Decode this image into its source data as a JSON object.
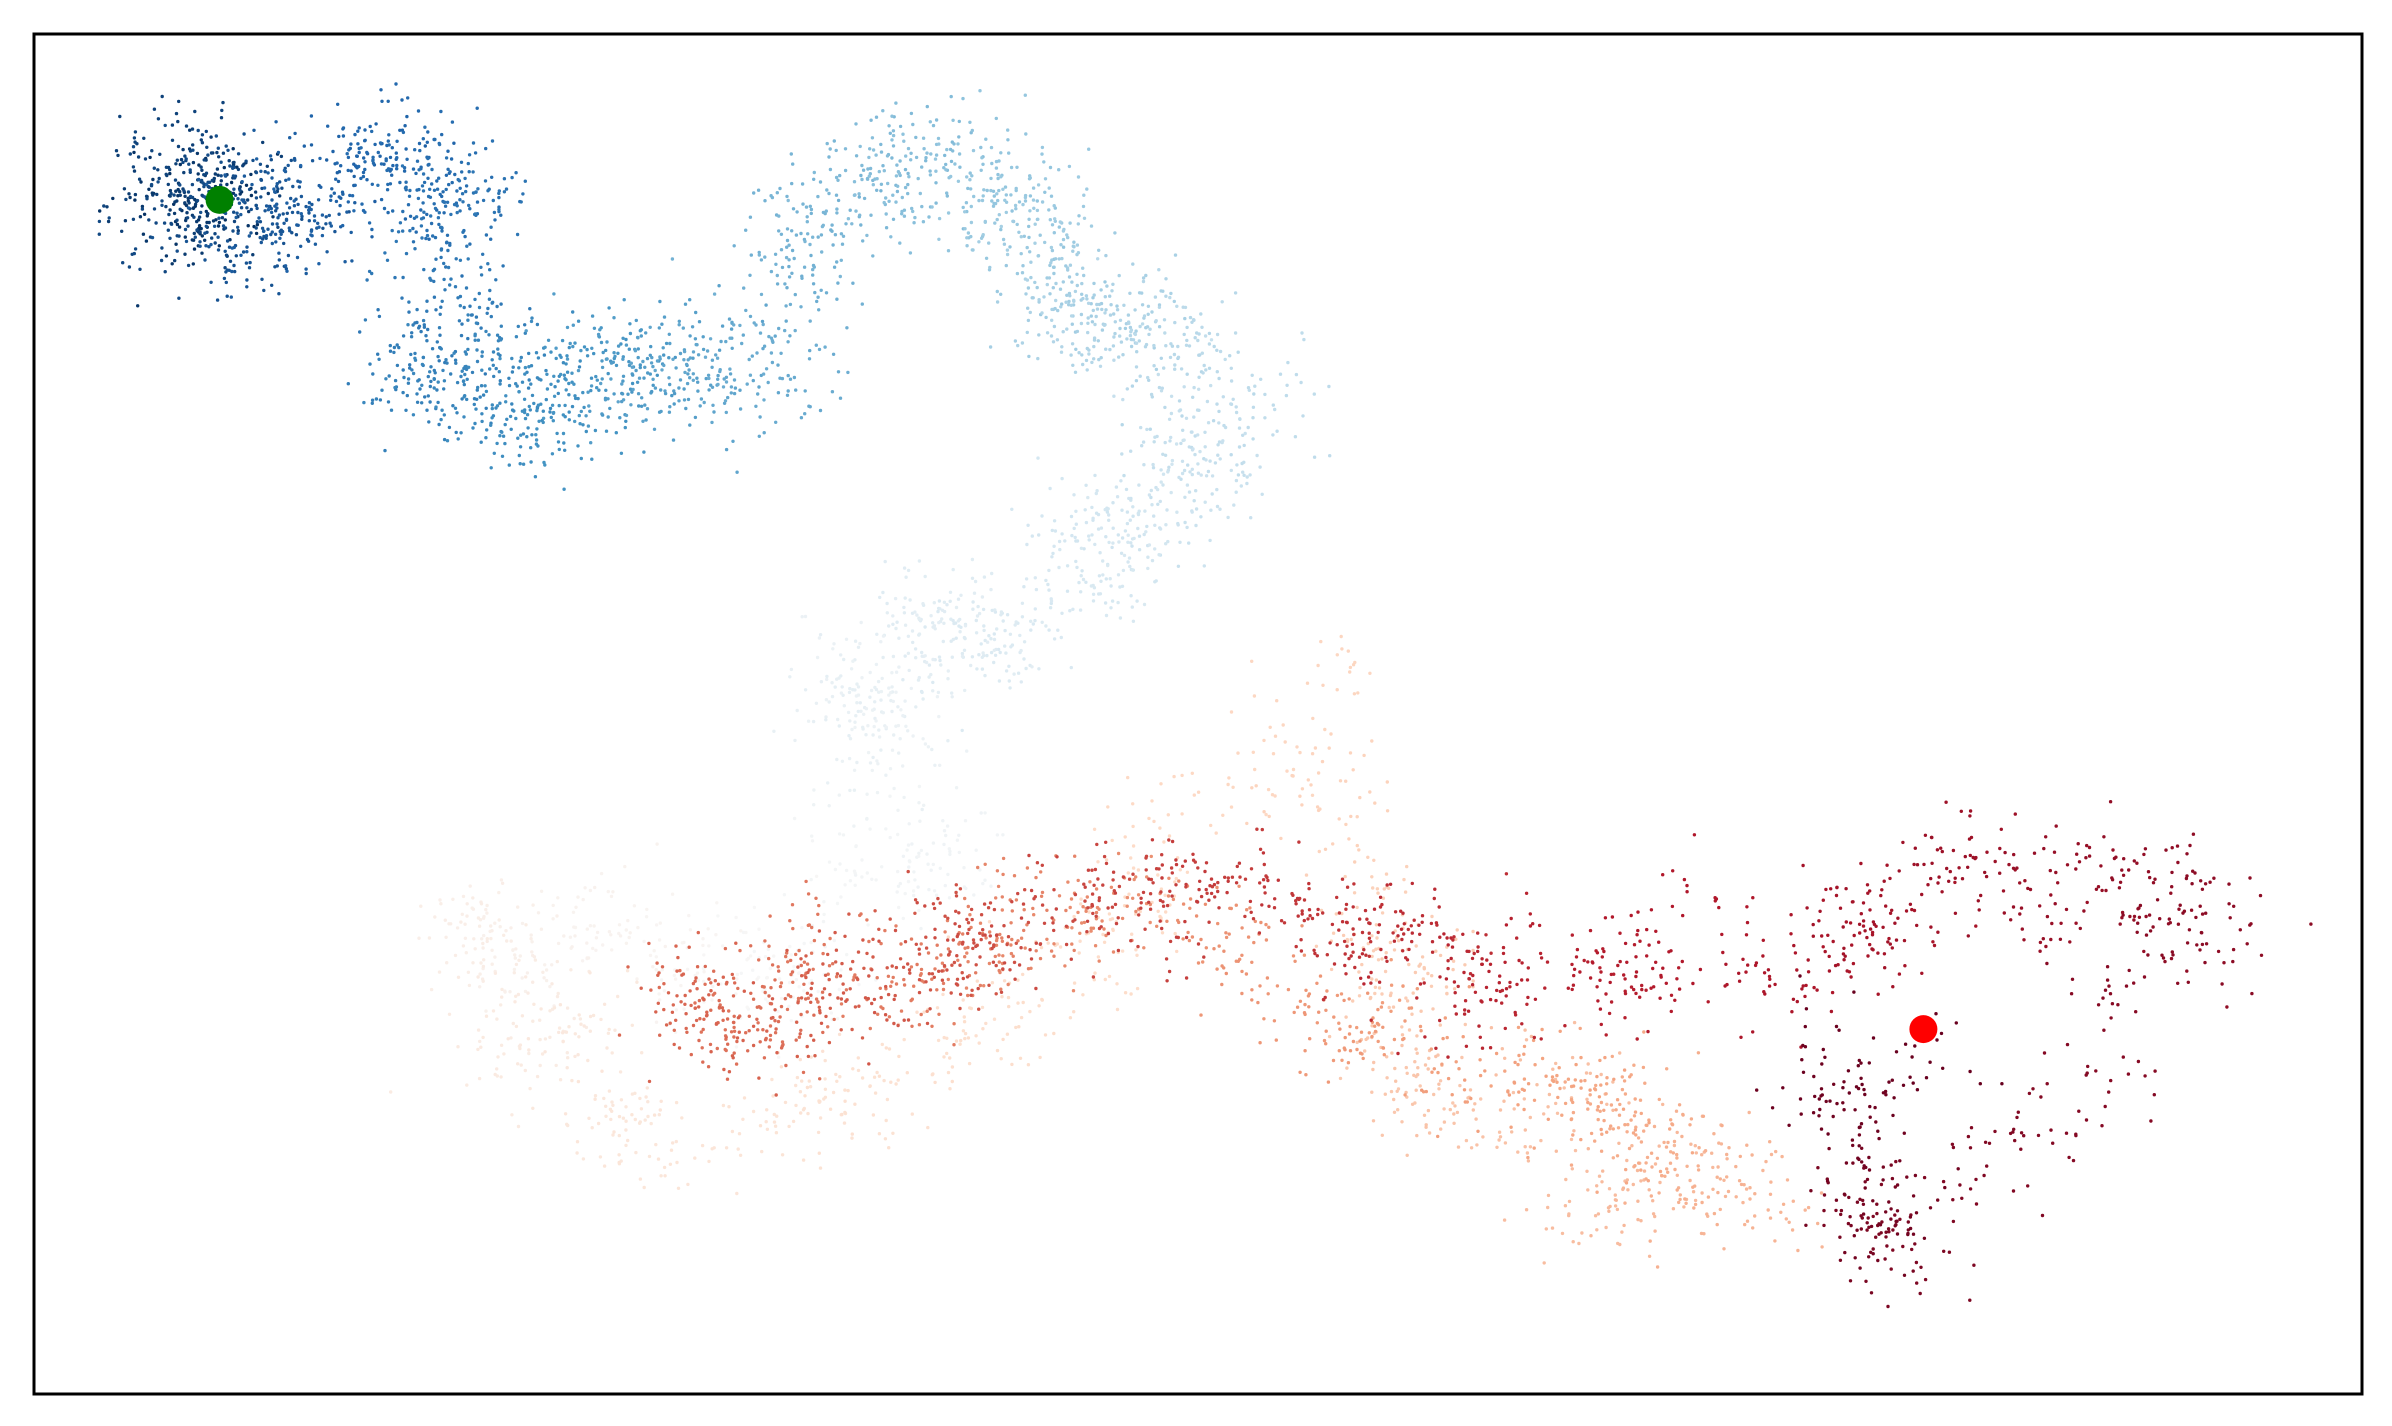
{
  "chart_data": {
    "type": "scatter",
    "title": "",
    "xlabel": "",
    "ylabel": "",
    "xticks": [],
    "yticks": [],
    "xlim": [
      -0.56,
      0.82
    ],
    "ylim": [
      -0.38,
      0.44
    ],
    "grid": false,
    "legend": "none",
    "colormap": "RdBu_r",
    "colormap_stops": [
      "#053061",
      "#2166ac",
      "#4393c3",
      "#92c5de",
      "#d1e5f0",
      "#f7f7f7",
      "#fddbc7",
      "#f4a582",
      "#d6604d",
      "#b2182b",
      "#67001f"
    ],
    "num_points": 50000,
    "path_waypoints": [
      {
        "t": 0.0,
        "x": -0.45,
        "y": 0.34
      },
      {
        "t": 0.04,
        "x": -0.47,
        "y": 0.35
      },
      {
        "t": 0.07,
        "x": -0.42,
        "y": 0.33
      },
      {
        "t": 0.1,
        "x": -0.36,
        "y": 0.37
      },
      {
        "t": 0.13,
        "x": -0.3,
        "y": 0.34
      },
      {
        "t": 0.16,
        "x": -0.32,
        "y": 0.24
      },
      {
        "t": 0.19,
        "x": -0.27,
        "y": 0.21
      },
      {
        "t": 0.22,
        "x": -0.2,
        "y": 0.23
      },
      {
        "t": 0.25,
        "x": -0.12,
        "y": 0.26
      },
      {
        "t": 0.28,
        "x": -0.06,
        "y": 0.36
      },
      {
        "t": 0.31,
        "x": 0.02,
        "y": 0.35
      },
      {
        "t": 0.34,
        "x": 0.07,
        "y": 0.27
      },
      {
        "t": 0.37,
        "x": 0.14,
        "y": 0.24
      },
      {
        "t": 0.4,
        "x": 0.1,
        "y": 0.15
      },
      {
        "t": 0.43,
        "x": 0.02,
        "y": 0.08
      },
      {
        "t": 0.46,
        "x": -0.08,
        "y": 0.05
      },
      {
        "t": 0.48,
        "x": -0.03,
        "y": -0.04
      },
      {
        "t": 0.5,
        "x": -0.12,
        "y": -0.12
      },
      {
        "t": 0.53,
        "x": -0.3,
        "y": -0.09
      },
      {
        "t": 0.56,
        "x": -0.2,
        "y": -0.23
      },
      {
        "t": 0.585,
        "x": 0.0,
        "y": -0.18
      },
      {
        "t": 0.61,
        "x": 0.22,
        "y": 0.01
      },
      {
        "t": 0.64,
        "x": 0.26,
        "y": -0.21
      },
      {
        "t": 0.67,
        "x": 0.46,
        "y": -0.26
      },
      {
        "t": 0.7,
        "x": 0.35,
        "y": -0.19
      },
      {
        "t": 0.73,
        "x": 0.12,
        "y": -0.1
      },
      {
        "t": 0.76,
        "x": -0.07,
        "y": -0.12
      },
      {
        "t": 0.79,
        "x": -0.18,
        "y": -0.17
      },
      {
        "t": 0.82,
        "x": 0.0,
        "y": -0.1
      },
      {
        "t": 0.85,
        "x": 0.15,
        "y": -0.08
      },
      {
        "t": 0.88,
        "x": 0.28,
        "y": -0.14
      },
      {
        "t": 0.91,
        "x": 0.5,
        "y": -0.12
      },
      {
        "t": 0.93,
        "x": 0.58,
        "y": -0.06
      },
      {
        "t": 0.95,
        "x": 0.75,
        "y": -0.07
      },
      {
        "t": 0.97,
        "x": 0.57,
        "y": -0.3
      },
      {
        "t": 0.99,
        "x": 0.52,
        "y": -0.22
      },
      {
        "t": 1.0,
        "x": 0.56,
        "y": -0.16
      }
    ],
    "start_point": {
      "x": -0.45,
      "y": 0.34,
      "color": "#008000"
    },
    "end_point": {
      "x": 0.56,
      "y": -0.16,
      "color": "#ff0000"
    }
  }
}
